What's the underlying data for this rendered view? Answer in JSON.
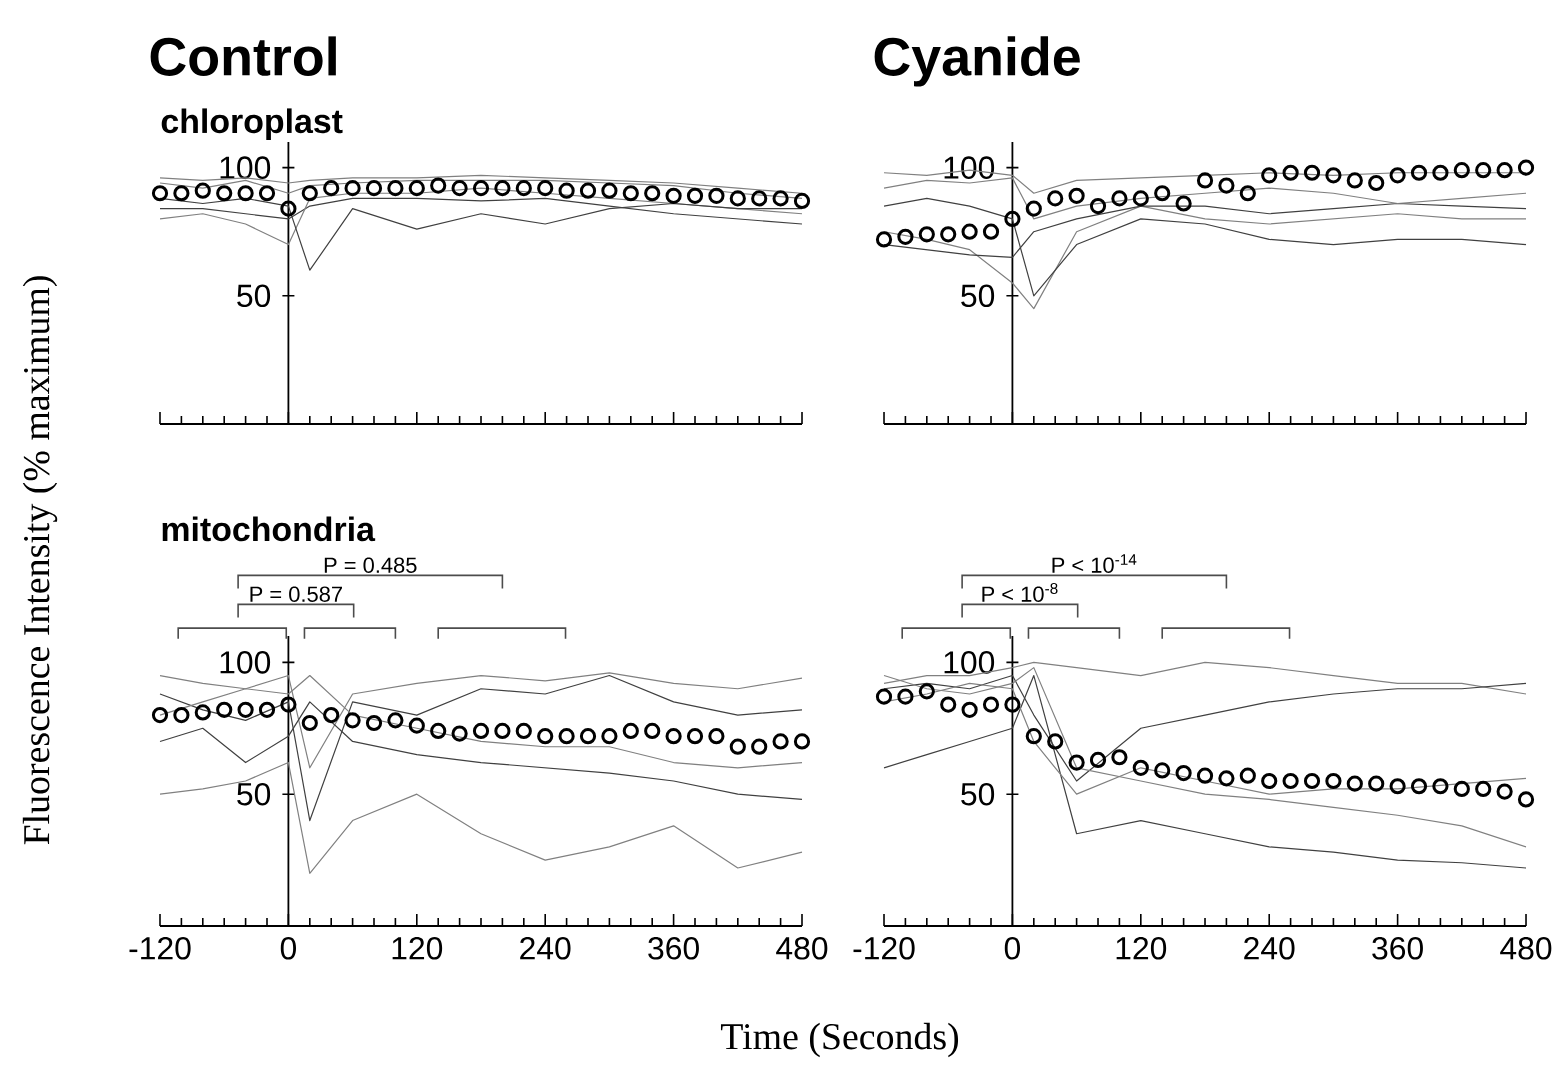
{
  "chart_data": [
    {
      "type": "line",
      "title": "Control",
      "subtitle": "chloroplast",
      "ylabel": "Fluorescence Intensity (% maximum)",
      "x": [
        -120,
        -100,
        -80,
        -60,
        -40,
        -20,
        0,
        20,
        40,
        60,
        80,
        100,
        120,
        140,
        160,
        180,
        200,
        220,
        240,
        260,
        280,
        300,
        320,
        340,
        360,
        380,
        400,
        420,
        440,
        460,
        480
      ],
      "xlim": [
        -120,
        480
      ],
      "xticks": [
        -120,
        0,
        120,
        240,
        360,
        480
      ],
      "ylim": [
        0,
        110
      ],
      "yticks": [
        50,
        100
      ],
      "tick_labels": "y",
      "series": [
        {
          "type": "line",
          "color": "#808080",
          "x": [
            -120,
            -80,
            -40,
            0,
            20,
            60,
            120,
            180,
            240,
            300,
            360,
            420,
            480
          ],
          "values": [
            96,
            95,
            96,
            94,
            95,
            96,
            96,
            97,
            96,
            95,
            94,
            92,
            90
          ]
        },
        {
          "type": "line",
          "color": "#404040",
          "x": [
            -120,
            -80,
            -40,
            0,
            20,
            60,
            120,
            180,
            240,
            300,
            360,
            420,
            480
          ],
          "values": [
            84,
            84,
            82,
            80,
            85,
            88,
            88,
            87,
            88,
            85,
            82,
            80,
            78
          ]
        },
        {
          "type": "line",
          "color": "#808080",
          "x": [
            -120,
            -80,
            -40,
            0,
            20,
            60,
            120,
            180,
            240,
            300,
            360,
            420,
            480
          ],
          "values": [
            80,
            82,
            78,
            70,
            88,
            90,
            90,
            92,
            90,
            88,
            86,
            84,
            82
          ]
        },
        {
          "type": "line",
          "color": "#404040",
          "x": [
            -120,
            -80,
            -40,
            0,
            20,
            60,
            120,
            180,
            240,
            300,
            360,
            420,
            480
          ],
          "values": [
            88,
            86,
            88,
            85,
            60,
            84,
            76,
            82,
            78,
            84,
            86,
            84,
            84
          ]
        },
        {
          "type": "line",
          "color": "#808080",
          "x": [
            -120,
            -80,
            -40,
            0,
            20,
            60,
            120,
            180,
            240,
            300,
            360,
            420,
            480
          ],
          "values": [
            94,
            92,
            95,
            90,
            93,
            94,
            95,
            95,
            95,
            94,
            93,
            90,
            88
          ]
        },
        {
          "type": "scatter",
          "color": "#000000",
          "marker": "circle",
          "values": [
            90,
            90,
            91,
            90,
            90,
            90,
            84,
            90,
            92,
            92,
            92,
            92,
            92,
            93,
            92,
            92,
            92,
            92,
            92,
            91,
            91,
            91,
            90,
            90,
            89,
            89,
            89,
            88,
            88,
            88,
            87
          ]
        }
      ]
    },
    {
      "type": "line",
      "title": "Cyanide",
      "x": [
        -120,
        -100,
        -80,
        -60,
        -40,
        -20,
        0,
        20,
        40,
        60,
        80,
        100,
        120,
        140,
        160,
        180,
        200,
        220,
        240,
        260,
        280,
        300,
        320,
        340,
        360,
        380,
        400,
        420,
        440,
        460,
        480
      ],
      "xlim": [
        -120,
        480
      ],
      "xticks": [
        -120,
        0,
        120,
        240,
        360,
        480
      ],
      "ylim": [
        0,
        110
      ],
      "yticks": [
        50,
        100
      ],
      "tick_labels": "y",
      "series": [
        {
          "type": "line",
          "color": "#808080",
          "x": [
            -120,
            -80,
            -40,
            0,
            20,
            60,
            120,
            180,
            240,
            300,
            360,
            420,
            480
          ],
          "values": [
            98,
            97,
            99,
            97,
            90,
            95,
            96,
            97,
            98,
            97,
            98,
            98,
            98
          ]
        },
        {
          "type": "line",
          "color": "#808080",
          "x": [
            -120,
            -80,
            -40,
            0,
            20,
            60,
            120,
            180,
            240,
            300,
            360,
            420,
            480
          ],
          "values": [
            75,
            72,
            68,
            55,
            45,
            75,
            85,
            80,
            78,
            80,
            82,
            80,
            80
          ]
        },
        {
          "type": "line",
          "color": "#404040",
          "x": [
            -120,
            -80,
            -40,
            0,
            20,
            60,
            120,
            180,
            240,
            300,
            360,
            420,
            480
          ],
          "values": [
            85,
            88,
            85,
            80,
            50,
            70,
            80,
            78,
            72,
            70,
            72,
            72,
            70
          ]
        },
        {
          "type": "line",
          "color": "#404040",
          "x": [
            -120,
            -80,
            -40,
            0,
            20,
            60,
            120,
            180,
            240,
            300,
            360,
            420,
            480
          ],
          "values": [
            70,
            68,
            66,
            65,
            75,
            80,
            85,
            85,
            82,
            84,
            86,
            85,
            84
          ]
        },
        {
          "type": "line",
          "color": "#808080",
          "x": [
            -120,
            -80,
            -40,
            0,
            20,
            60,
            120,
            180,
            240,
            300,
            360,
            420,
            480
          ],
          "values": [
            92,
            95,
            94,
            96,
            80,
            85,
            88,
            90,
            92,
            90,
            86,
            88,
            90
          ]
        },
        {
          "type": "scatter",
          "color": "#000000",
          "marker": "circle",
          "values": [
            72,
            73,
            74,
            74,
            75,
            75,
            80,
            84,
            88,
            89,
            85,
            88,
            88,
            90,
            86,
            95,
            93,
            90,
            97,
            98,
            98,
            97,
            95,
            94,
            97,
            98,
            98,
            99,
            99,
            99,
            100
          ]
        }
      ]
    },
    {
      "type": "line",
      "subtitle": "mitochondria",
      "xlabel": "Time (Seconds)",
      "annotations": [
        "P = 0.587",
        "P = 0.485"
      ],
      "x": [
        -120,
        -100,
        -80,
        -60,
        -40,
        -20,
        0,
        20,
        40,
        60,
        80,
        100,
        120,
        140,
        160,
        180,
        200,
        220,
        240,
        260,
        280,
        300,
        320,
        340,
        360,
        380,
        400,
        420,
        440,
        460,
        480
      ],
      "xlim": [
        -120,
        480
      ],
      "xticks": [
        -120,
        0,
        120,
        240,
        360,
        480
      ],
      "ylim": [
        0,
        110
      ],
      "yticks": [
        50,
        100
      ],
      "series": [
        {
          "type": "line",
          "color": "#808080",
          "x": [
            -120,
            -80,
            -40,
            0,
            20,
            60,
            120,
            180,
            240,
            300,
            360,
            420,
            480
          ],
          "values": [
            50,
            52,
            55,
            62,
            20,
            40,
            50,
            35,
            25,
            30,
            38,
            22,
            28
          ]
        },
        {
          "type": "line",
          "color": "#808080",
          "x": [
            -120,
            -80,
            -40,
            0,
            20,
            60,
            120,
            180,
            240,
            300,
            360,
            420,
            480
          ],
          "values": [
            95,
            92,
            90,
            95,
            60,
            88,
            92,
            95,
            93,
            96,
            92,
            90,
            94
          ]
        },
        {
          "type": "line",
          "color": "#404040",
          "x": [
            -120,
            -80,
            -40,
            0,
            20,
            60,
            120,
            180,
            240,
            300,
            360,
            420,
            480
          ],
          "values": [
            88,
            82,
            78,
            85,
            40,
            85,
            80,
            90,
            88,
            95,
            85,
            80,
            82
          ]
        },
        {
          "type": "line",
          "color": "#404040",
          "x": [
            -120,
            -80,
            -40,
            0,
            20,
            60,
            120,
            180,
            240,
            300,
            360,
            420,
            480
          ],
          "values": [
            70,
            75,
            62,
            72,
            85,
            70,
            65,
            62,
            60,
            58,
            55,
            50,
            48
          ]
        },
        {
          "type": "line",
          "color": "#808080",
          "x": [
            -120,
            -80,
            -40,
            0,
            20,
            60,
            120,
            180,
            240,
            300,
            360,
            420,
            480
          ],
          "values": [
            80,
            85,
            90,
            88,
            95,
            80,
            75,
            70,
            68,
            68,
            62,
            60,
            62
          ]
        },
        {
          "type": "scatter",
          "color": "#000000",
          "marker": "circle",
          "values": [
            80,
            80,
            81,
            82,
            82,
            82,
            84,
            77,
            80,
            78,
            77,
            78,
            76,
            74,
            73,
            74,
            74,
            74,
            72,
            72,
            72,
            72,
            74,
            74,
            72,
            72,
            72,
            68,
            68,
            70,
            70
          ]
        }
      ]
    },
    {
      "type": "line",
      "annotations": [
        "P < 10$^{-8}$",
        "P < 10$^{-14}$"
      ],
      "x": [
        -120,
        -100,
        -80,
        -60,
        -40,
        -20,
        0,
        20,
        40,
        60,
        80,
        100,
        120,
        140,
        160,
        180,
        200,
        220,
        240,
        260,
        280,
        300,
        320,
        340,
        360,
        380,
        400,
        420,
        440,
        460,
        480
      ],
      "xlim": [
        -120,
        480
      ],
      "xticks": [
        -120,
        0,
        120,
        240,
        360,
        480
      ],
      "ylim": [
        0,
        110
      ],
      "yticks": [
        50,
        100
      ],
      "series": [
        {
          "type": "line",
          "color": "#808080",
          "x": [
            -120,
            -80,
            -40,
            0,
            20,
            60,
            120,
            180,
            240,
            300,
            360,
            420,
            480
          ],
          "values": [
            92,
            95,
            95,
            98,
            100,
            98,
            95,
            100,
            98,
            95,
            92,
            92,
            88
          ]
        },
        {
          "type": "line",
          "color": "#404040",
          "x": [
            -120,
            -80,
            -40,
            0,
            20,
            60,
            120,
            180,
            240,
            300,
            360,
            420,
            480
          ],
          "values": [
            60,
            65,
            70,
            75,
            95,
            35,
            40,
            35,
            30,
            28,
            25,
            24,
            22
          ]
        },
        {
          "type": "line",
          "color": "#404040",
          "x": [
            -120,
            -80,
            -40,
            0,
            20,
            60,
            120,
            180,
            240,
            300,
            360,
            420,
            480
          ],
          "values": [
            90,
            92,
            90,
            95,
            80,
            55,
            75,
            80,
            85,
            88,
            90,
            90,
            92
          ]
        },
        {
          "type": "line",
          "color": "#808080",
          "x": [
            -120,
            -80,
            -40,
            0,
            20,
            60,
            120,
            180,
            240,
            300,
            360,
            420,
            480
          ],
          "values": [
            95,
            90,
            88,
            92,
            98,
            60,
            55,
            50,
            48,
            45,
            42,
            38,
            30
          ]
        },
        {
          "type": "line",
          "color": "#808080",
          "x": [
            -120,
            -80,
            -40,
            0,
            20,
            60,
            120,
            180,
            240,
            300,
            360,
            420,
            480
          ],
          "values": [
            85,
            88,
            92,
            90,
            70,
            50,
            60,
            55,
            50,
            52,
            52,
            54,
            56
          ]
        },
        {
          "type": "scatter",
          "color": "#000000",
          "marker": "circle",
          "values": [
            87,
            87,
            89,
            84,
            82,
            84,
            84,
            72,
            70,
            62,
            63,
            64,
            60,
            59,
            58,
            57,
            56,
            57,
            55,
            55,
            55,
            55,
            54,
            54,
            53,
            53,
            53,
            52,
            52,
            51,
            48
          ]
        }
      ]
    }
  ]
}
